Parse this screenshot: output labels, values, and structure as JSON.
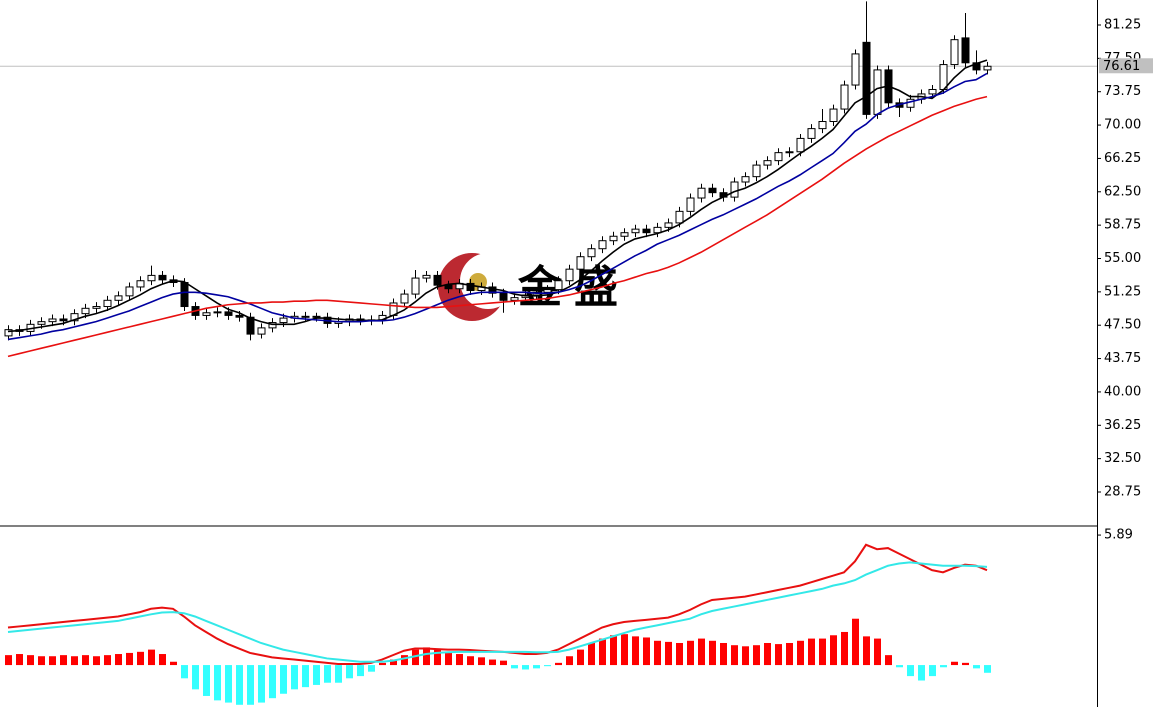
{
  "chart_data": [
    {
      "type": "candlestick",
      "open": [
        46.3,
        47.0,
        46.8,
        47.6,
        47.9,
        48.2,
        48.0,
        48.8,
        49.4,
        49.6,
        50.3,
        50.8,
        51.8,
        52.5,
        53.1,
        52.6,
        52.3,
        49.6,
        48.6,
        48.9,
        49.0,
        48.6,
        48.4,
        46.5,
        47.2,
        47.8,
        48.3,
        48.5,
        48.5,
        48.4,
        47.7,
        47.9,
        48.2,
        48.0,
        48.1,
        48.6,
        50.0,
        51.0,
        52.8,
        53.1,
        52.0,
        51.6,
        52.2,
        51.4,
        51.8,
        51.1,
        50.3,
        50.6,
        50.9,
        51.2,
        51.5,
        52.5,
        53.8,
        55.2,
        56.1,
        57.0,
        57.5,
        57.9,
        58.3,
        57.9,
        58.5,
        59.0,
        60.3,
        61.8,
        62.9,
        62.4,
        61.9,
        63.6,
        64.2,
        65.5,
        66.0,
        66.9,
        67.0,
        68.5,
        69.6,
        70.4,
        71.8,
        74.5,
        79.3,
        71.2,
        76.2,
        72.5,
        72.0,
        72.9,
        73.5,
        74.0,
        76.8,
        79.8,
        77.0,
        76.2
      ],
      "high": [
        47.5,
        47.5,
        48.1,
        48.4,
        48.7,
        48.7,
        49.3,
        49.9,
        50.1,
        50.8,
        51.3,
        52.3,
        53.0,
        54.2,
        53.6,
        53.1,
        52.8,
        50.1,
        49.4,
        49.5,
        49.5,
        49.1,
        48.9,
        47.7,
        48.3,
        48.8,
        49.0,
        49.0,
        48.9,
        48.9,
        48.4,
        48.7,
        48.7,
        48.6,
        49.1,
        50.5,
        51.5,
        53.7,
        53.6,
        53.6,
        52.5,
        52.7,
        52.7,
        52.3,
        52.3,
        51.6,
        51.1,
        51.4,
        51.7,
        52.0,
        53.0,
        54.3,
        55.7,
        56.6,
        57.5,
        58.0,
        58.4,
        58.8,
        58.8,
        59.0,
        59.5,
        60.8,
        62.3,
        63.4,
        63.4,
        62.9,
        64.1,
        64.7,
        66.0,
        66.5,
        67.4,
        67.5,
        69.0,
        70.1,
        71.8,
        72.3,
        75.0,
        78.5,
        83.9,
        76.7,
        76.7,
        73.0,
        73.4,
        74.0,
        74.5,
        77.3,
        80.1,
        82.6,
        78.4,
        77.1
      ],
      "low": [
        45.8,
        46.3,
        46.3,
        47.1,
        47.4,
        47.5,
        47.5,
        48.3,
        48.9,
        49.1,
        49.8,
        50.3,
        51.3,
        52.0,
        52.1,
        51.8,
        49.1,
        48.1,
        48.1,
        48.4,
        48.1,
        47.9,
        45.8,
        46.0,
        46.7,
        47.3,
        47.8,
        48.0,
        47.9,
        47.2,
        47.2,
        47.4,
        47.5,
        47.5,
        47.6,
        48.1,
        49.5,
        50.5,
        52.3,
        51.5,
        51.1,
        51.1,
        50.9,
        50.9,
        50.6,
        48.9,
        49.8,
        50.1,
        50.4,
        50.7,
        51.0,
        52.0,
        53.3,
        54.7,
        55.6,
        56.5,
        57.0,
        57.4,
        57.4,
        57.4,
        58.0,
        58.5,
        59.8,
        61.3,
        61.9,
        61.4,
        61.4,
        63.1,
        63.7,
        65.0,
        65.5,
        66.4,
        66.5,
        68.0,
        69.1,
        69.9,
        71.3,
        74.0,
        70.7,
        70.7,
        72.0,
        70.9,
        71.5,
        72.4,
        73.0,
        73.5,
        76.3,
        76.5,
        75.7,
        75.7
      ],
      "close": [
        47.0,
        46.8,
        47.6,
        47.9,
        48.2,
        48.0,
        48.8,
        49.4,
        49.6,
        50.3,
        50.8,
        51.8,
        52.5,
        53.1,
        52.6,
        52.3,
        49.6,
        48.6,
        48.9,
        49.0,
        48.6,
        48.4,
        46.5,
        47.2,
        47.8,
        48.3,
        48.5,
        48.5,
        48.4,
        47.7,
        47.9,
        48.2,
        48.0,
        48.1,
        48.6,
        50.0,
        51.0,
        52.8,
        53.1,
        52.0,
        51.6,
        52.2,
        51.4,
        51.8,
        51.1,
        50.3,
        50.6,
        50.9,
        51.2,
        51.5,
        52.5,
        53.8,
        55.2,
        56.1,
        57.0,
        57.5,
        57.9,
        58.3,
        57.9,
        58.5,
        59.0,
        60.3,
        61.8,
        62.9,
        62.4,
        61.9,
        63.6,
        64.2,
        65.5,
        66.0,
        66.9,
        67.0,
        68.5,
        69.6,
        70.4,
        71.8,
        74.5,
        78.0,
        71.2,
        76.2,
        72.5,
        72.0,
        72.9,
        73.5,
        74.0,
        76.8,
        79.6,
        77.0,
        76.2,
        76.61
      ],
      "up_color": "#ffffff",
      "down_color": "#000000",
      "series": [
        {
          "color": "#000000",
          "values": [
            46.8,
            46.9,
            47.1,
            47.3,
            47.5,
            47.7,
            48.1,
            48.5,
            48.8,
            49.2,
            49.7,
            50.3,
            50.9,
            51.6,
            52.1,
            52.5,
            52.4,
            51.6,
            50.8,
            50.0,
            49.3,
            48.9,
            48.3,
            47.9,
            47.6,
            47.6,
            47.6,
            47.9,
            48.3,
            48.3,
            48.2,
            48.1,
            48.1,
            48.0,
            48.1,
            48.6,
            49.2,
            50.1,
            51.1,
            51.8,
            52.1,
            52.2,
            52.0,
            51.8,
            51.6,
            51.4,
            51.0,
            50.8,
            50.8,
            50.9,
            51.2,
            51.8,
            52.6,
            53.6,
            54.7,
            55.7,
            56.6,
            57.2,
            57.5,
            57.8,
            58.2,
            58.8,
            59.6,
            60.5,
            61.3,
            61.9,
            62.5,
            62.9,
            63.5,
            64.2,
            65.0,
            65.9,
            66.8,
            67.6,
            68.5,
            69.5,
            71.0,
            72.5,
            73.2,
            74.1,
            74.4,
            73.9,
            73.2,
            73.2,
            73.0,
            73.9,
            75.3,
            76.4,
            76.9,
            77.3
          ]
        },
        {
          "color": "#0000a0",
          "values": [
            45.9,
            46.1,
            46.3,
            46.5,
            46.8,
            47.0,
            47.3,
            47.6,
            47.9,
            48.3,
            48.7,
            49.1,
            49.6,
            50.1,
            50.6,
            51.0,
            51.2,
            51.2,
            51.1,
            50.9,
            50.7,
            50.3,
            49.9,
            49.4,
            48.9,
            48.6,
            48.3,
            48.2,
            48.1,
            48.0,
            47.9,
            47.9,
            47.9,
            48.0,
            48.0,
            48.1,
            48.4,
            48.8,
            49.3,
            49.8,
            50.3,
            50.7,
            51.0,
            51.2,
            51.2,
            51.2,
            51.2,
            51.2,
            51.1,
            51.1,
            51.2,
            51.5,
            51.9,
            52.5,
            53.2,
            53.9,
            54.6,
            55.3,
            55.9,
            56.6,
            57.1,
            57.6,
            58.2,
            58.8,
            59.4,
            59.9,
            60.5,
            61.1,
            61.7,
            62.4,
            63.1,
            63.7,
            64.4,
            65.2,
            66.0,
            66.8,
            68.0,
            69.3,
            70.1,
            71.2,
            71.9,
            72.3,
            72.6,
            72.9,
            73.2,
            73.6,
            74.3,
            74.9,
            75.1,
            75.8
          ]
        },
        {
          "color": "#e81010",
          "values": [
            44.0,
            44.3,
            44.6,
            44.9,
            45.2,
            45.5,
            45.8,
            46.1,
            46.4,
            46.7,
            47.0,
            47.3,
            47.6,
            47.9,
            48.2,
            48.5,
            48.8,
            49.1,
            49.4,
            49.6,
            49.8,
            49.9,
            50.0,
            50.0,
            50.1,
            50.1,
            50.2,
            50.2,
            50.3,
            50.3,
            50.2,
            50.1,
            50.0,
            49.9,
            49.8,
            49.7,
            49.6,
            49.5,
            49.5,
            49.5,
            49.6,
            49.7,
            49.8,
            49.9,
            50.0,
            50.1,
            50.2,
            50.3,
            50.4,
            50.5,
            50.7,
            50.9,
            51.2,
            51.5,
            51.8,
            52.2,
            52.5,
            52.9,
            53.3,
            53.6,
            54.0,
            54.5,
            55.1,
            55.7,
            56.4,
            57.1,
            57.8,
            58.5,
            59.2,
            59.9,
            60.7,
            61.5,
            62.3,
            63.1,
            63.9,
            64.8,
            65.7,
            66.5,
            67.3,
            68.0,
            68.7,
            69.3,
            69.9,
            70.5,
            71.1,
            71.6,
            72.1,
            72.5,
            72.9,
            73.2
          ]
        }
      ],
      "ylim": [
        25.04,
        84.06
      ],
      "yticks": [
        28.75,
        {
          "value": 32.5,
          "label": "32.50"
        },
        36.25,
        {
          "value": 40,
          "label": "40.00"
        },
        43.75,
        {
          "value": 47.5,
          "label": "47.50"
        },
        51.25,
        {
          "value": 55,
          "label": "55.00"
        },
        58.75,
        {
          "value": 62.5,
          "label": "62.50"
        },
        66.25,
        {
          "value": 70,
          "label": "70.00"
        },
        73.75,
        {
          "value": 77.5,
          "label": "77.50"
        },
        81.25
      ],
      "last_price": 76.61,
      "watermark": "金盛"
    },
    {
      "type": "macd",
      "values": [
        0.45,
        0.5,
        0.45,
        0.4,
        0.4,
        0.45,
        0.4,
        0.45,
        0.4,
        0.45,
        0.5,
        0.55,
        0.6,
        0.7,
        0.5,
        0.15,
        -0.6,
        -1.1,
        -1.4,
        -1.6,
        -1.7,
        -1.8,
        -1.8,
        -1.7,
        -1.5,
        -1.3,
        -1.1,
        -1.0,
        -0.9,
        -0.8,
        -0.8,
        -0.6,
        -0.5,
        -0.3,
        0.1,
        0.25,
        0.45,
        0.7,
        0.8,
        0.7,
        0.6,
        0.5,
        0.4,
        0.35,
        0.25,
        0.2,
        -0.15,
        -0.2,
        -0.15,
        -0.05,
        0.1,
        0.4,
        0.7,
        1.0,
        1.2,
        1.35,
        1.4,
        1.3,
        1.25,
        1.1,
        1.05,
        1.0,
        1.1,
        1.2,
        1.1,
        1.0,
        0.9,
        0.85,
        0.9,
        1.0,
        0.95,
        1.0,
        1.1,
        1.2,
        1.2,
        1.35,
        1.5,
        2.1,
        1.3,
        1.2,
        0.45,
        -0.1,
        -0.5,
        -0.7,
        -0.5,
        -0.1,
        0.15,
        0.1,
        -0.15,
        -0.35
      ],
      "positive_color": "#ff0000",
      "negative_color": "#33ffff",
      "series": [
        {
          "color": "#e81010",
          "values": [
            1.7,
            1.75,
            1.8,
            1.85,
            1.9,
            1.95,
            2.0,
            2.05,
            2.1,
            2.15,
            2.2,
            2.3,
            2.4,
            2.55,
            2.6,
            2.55,
            2.2,
            1.8,
            1.5,
            1.2,
            0.95,
            0.75,
            0.55,
            0.45,
            0.35,
            0.3,
            0.25,
            0.2,
            0.15,
            0.1,
            0.05,
            0.05,
            0.05,
            0.1,
            0.25,
            0.45,
            0.65,
            0.75,
            0.75,
            0.72,
            0.7,
            0.7,
            0.68,
            0.65,
            0.62,
            0.6,
            0.55,
            0.5,
            0.5,
            0.55,
            0.7,
            0.95,
            1.2,
            1.45,
            1.7,
            1.85,
            1.95,
            2.0,
            2.05,
            2.1,
            2.15,
            2.3,
            2.5,
            2.75,
            2.95,
            3.0,
            3.05,
            3.1,
            3.2,
            3.3,
            3.4,
            3.5,
            3.6,
            3.75,
            3.9,
            4.05,
            4.2,
            4.7,
            5.45,
            5.25,
            5.3,
            5.05,
            4.8,
            4.55,
            4.3,
            4.2,
            4.4,
            4.55,
            4.5,
            4.3
          ]
        },
        {
          "color": "#33e8e8",
          "values": [
            1.5,
            1.55,
            1.6,
            1.65,
            1.7,
            1.75,
            1.8,
            1.85,
            1.9,
            1.95,
            2.0,
            2.1,
            2.2,
            2.3,
            2.38,
            2.4,
            2.35,
            2.2,
            2.0,
            1.8,
            1.6,
            1.4,
            1.2,
            1.0,
            0.85,
            0.7,
            0.6,
            0.5,
            0.4,
            0.3,
            0.25,
            0.2,
            0.15,
            0.15,
            0.15,
            0.2,
            0.3,
            0.4,
            0.5,
            0.55,
            0.58,
            0.6,
            0.6,
            0.6,
            0.6,
            0.6,
            0.6,
            0.6,
            0.58,
            0.58,
            0.6,
            0.7,
            0.85,
            1.0,
            1.15,
            1.3,
            1.45,
            1.6,
            1.7,
            1.8,
            1.9,
            2.0,
            2.1,
            2.3,
            2.45,
            2.55,
            2.65,
            2.75,
            2.85,
            2.95,
            3.05,
            3.15,
            3.25,
            3.35,
            3.45,
            3.6,
            3.7,
            3.85,
            4.1,
            4.3,
            4.5,
            4.6,
            4.65,
            4.6,
            4.55,
            4.5,
            4.5,
            4.5,
            4.48,
            4.45
          ]
        }
      ],
      "ylim": [
        -1.9,
        6.21
      ],
      "yticks": [
        5.89
      ]
    }
  ]
}
